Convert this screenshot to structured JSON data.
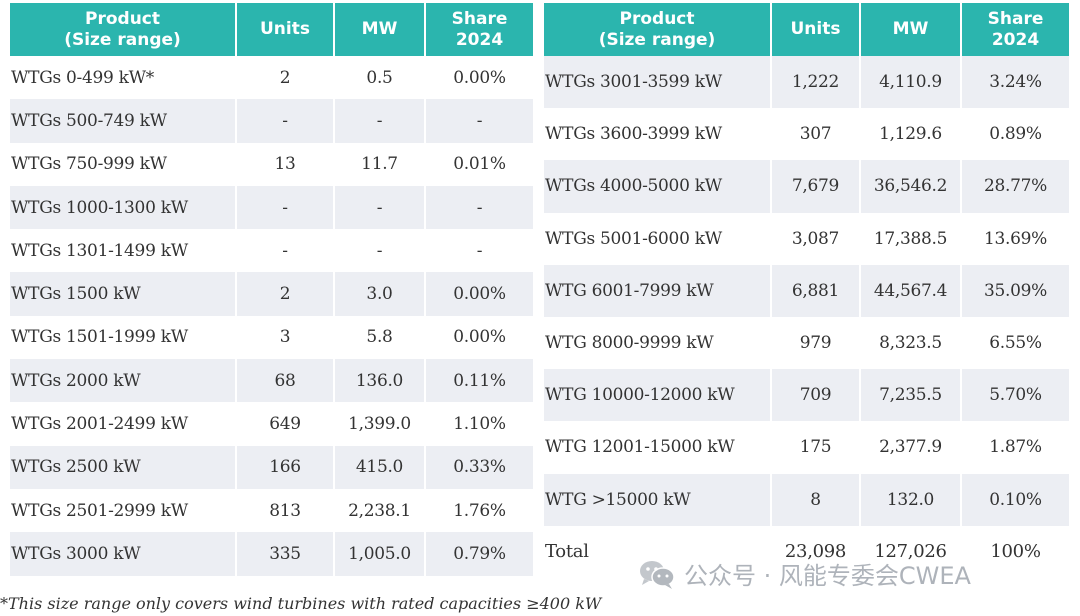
{
  "headers": {
    "product_line1": "Product",
    "product_line2": "(Size range)",
    "units": "Units",
    "mw": "MW",
    "share_line1": "Share",
    "share_line2": "2024"
  },
  "left_rows": [
    {
      "product": "WTGs 0-499 kW*",
      "units": "2",
      "mw": "0.5",
      "share": "0.00%"
    },
    {
      "product": "WTGs 500-749 kW",
      "units": "-",
      "mw": "-",
      "share": "-"
    },
    {
      "product": "WTGs 750-999 kW",
      "units": "13",
      "mw": "11.7",
      "share": "0.01%"
    },
    {
      "product": "WTGs 1000-1300 kW",
      "units": "-",
      "mw": "-",
      "share": "-"
    },
    {
      "product": "WTGs 1301-1499 kW",
      "units": "-",
      "mw": "-",
      "share": "-"
    },
    {
      "product": "WTGs 1500 kW",
      "units": "2",
      "mw": "3.0",
      "share": "0.00%"
    },
    {
      "product": "WTGs 1501-1999 kW",
      "units": "3",
      "mw": "5.8",
      "share": "0.00%"
    },
    {
      "product": "WTGs 2000 kW",
      "units": "68",
      "mw": "136.0",
      "share": "0.11%"
    },
    {
      "product": "WTGs 2001-2499 kW",
      "units": "649",
      "mw": "1,399.0",
      "share": "1.10%"
    },
    {
      "product": "WTGs 2500 kW",
      "units": "166",
      "mw": "415.0",
      "share": "0.33%"
    },
    {
      "product": "WTGs 2501-2999 kW",
      "units": "813",
      "mw": "2,238.1",
      "share": "1.76%"
    },
    {
      "product": "WTGs 3000 kW",
      "units": "335",
      "mw": "1,005.0",
      "share": "0.79%"
    }
  ],
  "right_rows": [
    {
      "product": "WTGs 3001-3599 kW",
      "units": "1,222",
      "mw": "4,110.9",
      "share": "3.24%"
    },
    {
      "product": "WTGs 3600-3999 kW",
      "units": "307",
      "mw": "1,129.6",
      "share": "0.89%"
    },
    {
      "product": "WTGs 4000-5000 kW",
      "units": "7,679",
      "mw": "36,546.2",
      "share": "28.77%"
    },
    {
      "product": "WTGs 5001-6000 kW",
      "units": "3,087",
      "mw": "17,388.5",
      "share": "13.69%"
    },
    {
      "product": "WTG 6001-7999 kW",
      "units": "6,881",
      "mw": "44,567.4",
      "share": "35.09%"
    },
    {
      "product": "WTG 8000-9999 kW",
      "units": "979",
      "mw": "8,323.5",
      "share": "6.55%"
    },
    {
      "product": "WTG 10000-12000 kW",
      "units": "709",
      "mw": "7,235.5",
      "share": "5.70%"
    },
    {
      "product": "WTG 12001-15000 kW",
      "units": "175",
      "mw": "2,377.9",
      "share": "1.87%"
    },
    {
      "product": "WTG >15000 kW",
      "units": "8",
      "mw": "132.0",
      "share": "0.10%"
    }
  ],
  "total": {
    "product": "Total",
    "units": "23,098",
    "mw": "127,026",
    "share": "100%"
  },
  "footnote": "*This size range only covers wind turbines with rated capacities  ≥400 kW",
  "watermark": {
    "text": "公众号 · 风能专委会CWEA",
    "icon": "wechat-icon"
  },
  "colors": {
    "header_bg": "#2bb5ae",
    "header_text": "#ffffff",
    "stripe": "#eceef3"
  }
}
